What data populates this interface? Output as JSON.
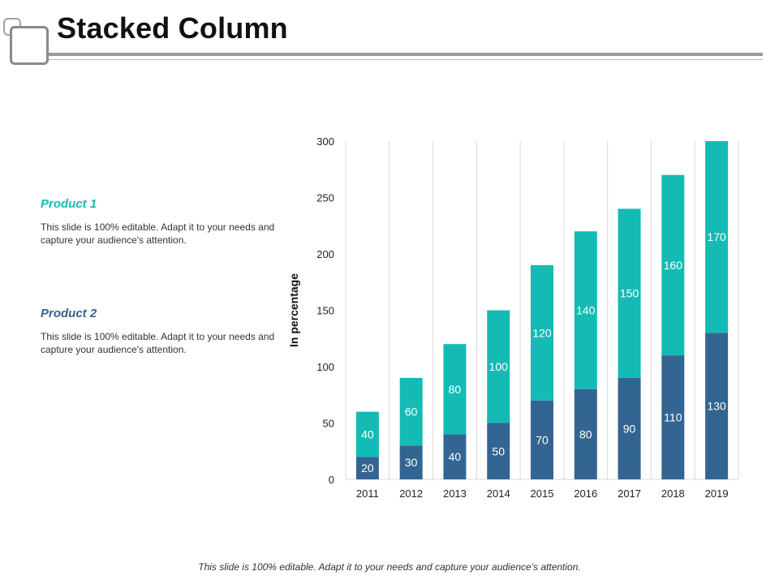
{
  "header": {
    "title": "Stacked Column"
  },
  "legend": [
    {
      "title": "Product 1",
      "text": "This slide is 100% editable. Adapt it to your needs and capture your audience's attention.",
      "color": "#14BBB4"
    },
    {
      "title": "Product 2",
      "text": "This slide is 100% editable. Adapt it to your needs and capture your audience's attention.",
      "color": "#336592"
    }
  ],
  "footer": {
    "text": "This slide is 100% editable. Adapt it to your needs and capture your audience's attention."
  },
  "chart_data": {
    "type": "bar",
    "stacked": true,
    "title": "",
    "xlabel": "",
    "ylabel": "In percentage",
    "ylim": [
      0,
      300
    ],
    "yticks": [
      0,
      50,
      100,
      150,
      200,
      250,
      300
    ],
    "grid": "vertical category separators",
    "categories": [
      "2011",
      "2012",
      "2013",
      "2014",
      "2015",
      "2016",
      "2017",
      "2018",
      "2019"
    ],
    "series": [
      {
        "name": "Product 2",
        "color": "#336592",
        "values": [
          20,
          30,
          40,
          50,
          70,
          80,
          90,
          110,
          130
        ]
      },
      {
        "name": "Product 1",
        "color": "#14BBB4",
        "values": [
          40,
          60,
          80,
          100,
          120,
          140,
          150,
          160,
          170
        ]
      }
    ]
  }
}
